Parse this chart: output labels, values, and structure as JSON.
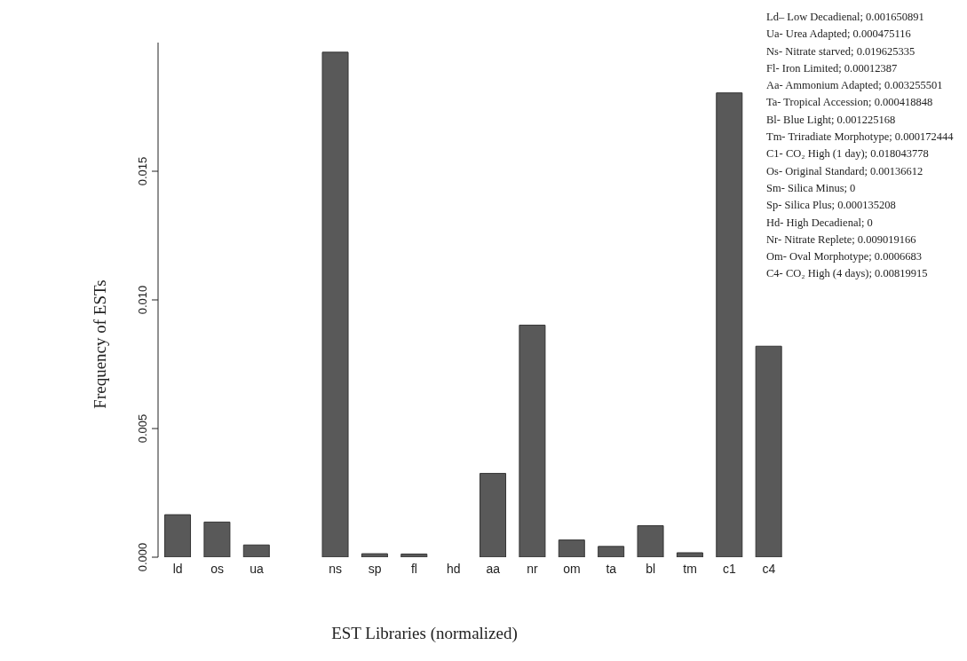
{
  "chart_data": {
    "type": "bar",
    "xlabel": "EST Libraries (normalized)",
    "ylabel": "Frequency of ESTs",
    "categories": [
      "ld",
      "os",
      "ua",
      null,
      "ns",
      "sp",
      "fl",
      "hd",
      "aa",
      "nr",
      "om",
      "ta",
      "bl",
      "tm",
      "c1",
      "c4"
    ],
    "values": [
      0.001650891,
      0.00136612,
      0.000475116,
      0,
      0.019625335,
      0.000135208,
      0.00012387,
      0,
      0.003255501,
      0.009019166,
      0.0006683,
      0.000418848,
      0.001225168,
      0.000172444,
      0.018043778,
      0.00819915
    ],
    "color": "#595959",
    "ylim": [
      0,
      0.02
    ],
    "yticks": [
      {
        "value": 0,
        "label": "0.000"
      },
      {
        "value": 0.005,
        "label": "0.005"
      },
      {
        "value": 0.01,
        "label": "0.010"
      },
      {
        "value": 0.015,
        "label": "0.015"
      }
    ],
    "annotations": [
      "Ld– Low Decadienal; 0.001650891",
      "Ua- Urea Adapted; 0.000475116",
      "Ns- Nitrate starved; 0.019625335",
      "Fl- Iron Limited; 0.00012387",
      "Aa- Ammonium Adapted; 0.003255501",
      "Ta- Tropical Accession; 0.000418848",
      "Bl- Blue Light; 0.001225168",
      "Tm- Triradiate Morphotype; 0.000172444",
      "C1- CO₂ High (1 day); 0.018043778",
      "Os- Original Standard; 0.00136612",
      "Sm- Silica Minus; 0",
      "Sp- Silica Plus; 0.000135208",
      "Hd- High Decadienal; 0",
      "Nr- Nitrate Replete; 0.009019166",
      "Om- Oval Morphotype; 0.0006683",
      "C4- CO₂ High (4 days); 0.00819915"
    ]
  }
}
